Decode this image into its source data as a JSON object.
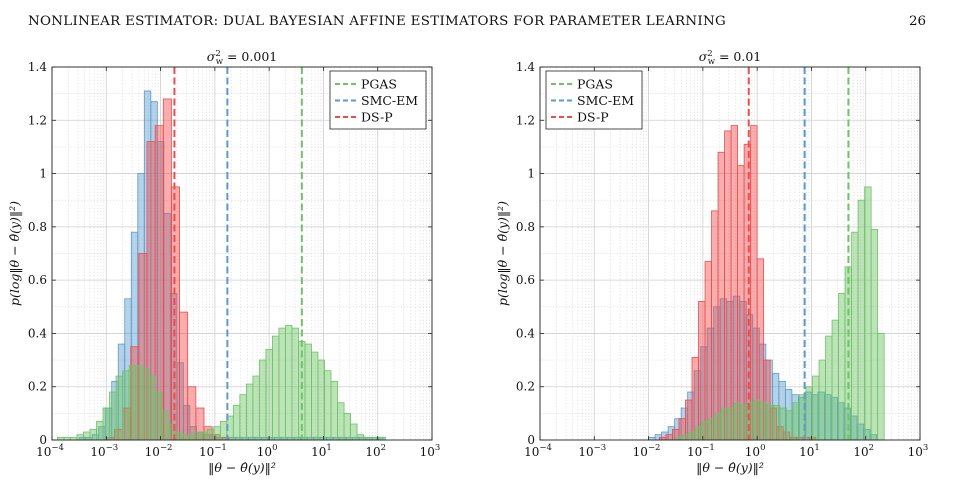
{
  "page": {
    "header_title": "NONLINEAR ESTIMATOR: DUAL BAYESIAN AFFINE ESTIMATORS FOR PARAMETER LEARNING",
    "page_number": "26"
  },
  "colors": {
    "PGAS": "#6cc464",
    "SMC-EM": "#5b9bcc",
    "DS-P": "#ef4b4b",
    "grid": "#cfcfcf"
  },
  "chart_data": [
    {
      "type": "bar",
      "title_sigma": "σ",
      "title_sup": "2",
      "title_sub": "w",
      "title_value": "= 0.001",
      "xlabel": "‖θ − θ̂(y)‖²",
      "ylabel": "p(log‖θ − θ̂(y)‖²)",
      "xscale": "log",
      "xlim": [
        0.0001,
        1000
      ],
      "ylim": [
        0,
        1.4
      ],
      "xtick_values": [
        0.0001,
        0.001,
        0.01,
        0.1,
        1,
        10,
        100,
        1000
      ],
      "xtick_exps": [
        "−4",
        "−3",
        "−2",
        "−1",
        "0",
        "1",
        "2",
        "3"
      ],
      "yticks": [
        "0",
        "0.2",
        "0.4",
        "0.6",
        "0.8",
        "1",
        "1.2",
        "1.4"
      ],
      "ytick_values": [
        0,
        0.2,
        0.4,
        0.6,
        0.8,
        1,
        1.2,
        1.4
      ],
      "grid": true,
      "legend_position": "top-right",
      "legend": [
        "PGAS",
        "SMC-EM",
        "DS-P"
      ],
      "series": [
        {
          "name": "SMC-EM",
          "bin_edges_log10": [
            -3.5,
            -3.38,
            -3.26,
            -3.14,
            -3.02,
            -2.9,
            -2.78,
            -2.66,
            -2.54,
            -2.42,
            -2.3,
            -2.18,
            -2.06,
            -1.94,
            -1.82,
            -1.7,
            -1.58,
            -1.46,
            -1.34,
            -1.22,
            -1.1,
            -0.98,
            -0.86,
            -0.74,
            -0.62,
            -0.5,
            -0.38,
            -0.26,
            -0.14,
            -0.02,
            0.1,
            0.22,
            0.34,
            0.46,
            0.58,
            0.7,
            0.82,
            0.94,
            1.06,
            1.18,
            1.3,
            1.42,
            1.54,
            1.66,
            1.78,
            1.9,
            2.02,
            2.14
          ],
          "values": [
            0.01,
            0.01,
            0.02,
            0.05,
            0.12,
            0.22,
            0.36,
            0.53,
            0.78,
            1.0,
            1.31,
            1.27,
            1.12,
            0.85,
            0.55,
            0.29,
            0.13,
            0.05,
            0.03,
            0.02,
            0.02,
            0.01,
            0.01,
            0.01,
            0.01,
            0.01,
            0.01,
            0.01,
            0.01,
            0.01,
            0.01,
            0.01,
            0.01,
            0.01,
            0.01,
            0.01,
            0.01,
            0.01,
            0.01,
            0.01,
            0.01,
            0.01,
            0.01,
            0.01,
            0.01,
            0.01,
            0.01
          ],
          "mean_line": 0.17
        },
        {
          "name": "DS-P",
          "bin_edges_log10": [
            -3.0,
            -2.85,
            -2.7,
            -2.55,
            -2.4,
            -2.25,
            -2.1,
            -1.95,
            -1.8,
            -1.65,
            -1.5,
            -1.35,
            -1.2,
            -1.05,
            -0.9,
            -0.75
          ],
          "values": [
            0.01,
            0.04,
            0.12,
            0.35,
            0.7,
            1.12,
            1.18,
            1.28,
            0.95,
            0.48,
            0.2,
            0.12,
            0.05,
            0.02,
            0.01
          ],
          "mean_line": 0.018
        },
        {
          "name": "PGAS",
          "bin_edges_log10": [
            -3.9,
            -3.78,
            -3.66,
            -3.54,
            -3.42,
            -3.3,
            -3.18,
            -3.06,
            -2.94,
            -2.82,
            -2.7,
            -2.58,
            -2.46,
            -2.34,
            -2.22,
            -2.1,
            -1.98,
            -1.86,
            -1.74,
            -1.62,
            -1.5,
            -1.38,
            -1.26,
            -1.14,
            -1.02,
            -0.9,
            -0.78,
            -0.66,
            -0.54,
            -0.42,
            -0.3,
            -0.18,
            -0.06,
            0.06,
            0.18,
            0.3,
            0.42,
            0.54,
            0.66,
            0.78,
            0.9,
            1.02,
            1.14,
            1.26,
            1.38,
            1.5,
            1.62,
            1.74,
            1.86,
            1.98,
            2.1
          ],
          "values": [
            0.01,
            0.01,
            0.01,
            0.02,
            0.03,
            0.04,
            0.07,
            0.12,
            0.18,
            0.24,
            0.26,
            0.28,
            0.28,
            0.27,
            0.24,
            0.18,
            0.11,
            0.06,
            0.03,
            0.02,
            0.02,
            0.03,
            0.03,
            0.04,
            0.05,
            0.07,
            0.09,
            0.13,
            0.17,
            0.21,
            0.24,
            0.3,
            0.34,
            0.39,
            0.42,
            0.43,
            0.42,
            0.37,
            0.36,
            0.33,
            0.3,
            0.26,
            0.22,
            0.14,
            0.1,
            0.06,
            0.02,
            0.01,
            0.01,
            0.01
          ],
          "mean_line": 4.0
        }
      ]
    },
    {
      "type": "bar",
      "title_sigma": "σ",
      "title_sup": "2",
      "title_sub": "w",
      "title_value": "= 0.01",
      "xlabel": "‖θ − θ̂(y)‖²",
      "ylabel": "p(log‖θ − θ̂(y)‖²)",
      "xscale": "log",
      "xlim": [
        0.0001,
        1000
      ],
      "ylim": [
        0,
        1.4
      ],
      "xtick_values": [
        0.0001,
        0.001,
        0.01,
        0.1,
        1,
        10,
        100,
        1000
      ],
      "xtick_exps": [
        "−4",
        "−3",
        "−2",
        "−1",
        "0",
        "1",
        "2",
        "3"
      ],
      "yticks": [
        "0",
        "0.2",
        "0.4",
        "0.6",
        "0.8",
        "1",
        "1.2",
        "1.4"
      ],
      "ytick_values": [
        0,
        0.2,
        0.4,
        0.6,
        0.8,
        1,
        1.2,
        1.4
      ],
      "grid": true,
      "legend_position": "top-left",
      "legend": [
        "PGAS",
        "SMC-EM",
        "DS-P"
      ],
      "series": [
        {
          "name": "SMC-EM",
          "bin_edges_log10": [
            -2.0,
            -1.88,
            -1.76,
            -1.64,
            -1.52,
            -1.4,
            -1.28,
            -1.16,
            -1.04,
            -0.92,
            -0.8,
            -0.68,
            -0.56,
            -0.44,
            -0.32,
            -0.2,
            -0.08,
            0.04,
            0.16,
            0.28,
            0.4,
            0.52,
            0.64,
            0.76,
            0.88,
            1.0,
            1.12,
            1.24,
            1.36,
            1.48,
            1.6,
            1.72,
            1.84,
            1.96,
            2.08,
            2.2
          ],
          "values": [
            0.01,
            0.02,
            0.03,
            0.05,
            0.08,
            0.12,
            0.18,
            0.26,
            0.35,
            0.42,
            0.5,
            0.53,
            0.52,
            0.54,
            0.52,
            0.47,
            0.42,
            0.36,
            0.3,
            0.25,
            0.22,
            0.19,
            0.17,
            0.16,
            0.18,
            0.17,
            0.18,
            0.17,
            0.16,
            0.14,
            0.12,
            0.09,
            0.06,
            0.04,
            0.02
          ],
          "mean_line": 7.5
        },
        {
          "name": "DS-P",
          "bin_edges_log10": [
            -1.8,
            -1.68,
            -1.56,
            -1.44,
            -1.32,
            -1.2,
            -1.08,
            -0.96,
            -0.84,
            -0.72,
            -0.6,
            -0.48,
            -0.36,
            -0.24,
            -0.12,
            0.0,
            0.12,
            0.24,
            0.36,
            0.48,
            0.6,
            0.72,
            0.84,
            0.96,
            1.08
          ],
          "values": [
            0.01,
            0.02,
            0.04,
            0.08,
            0.15,
            0.31,
            0.52,
            0.67,
            0.86,
            1.08,
            1.16,
            1.18,
            1.03,
            1.11,
            1.18,
            0.68,
            0.3,
            0.12,
            0.05,
            0.03,
            0.01,
            0.01,
            0.01,
            0.01
          ],
          "mean_line": 0.7
        },
        {
          "name": "PGAS",
          "bin_edges_log10": [
            -1.5,
            -1.38,
            -1.26,
            -1.14,
            -1.02,
            -0.9,
            -0.78,
            -0.66,
            -0.54,
            -0.42,
            -0.3,
            -0.18,
            -0.06,
            0.06,
            0.18,
            0.3,
            0.42,
            0.54,
            0.66,
            0.78,
            0.9,
            1.02,
            1.14,
            1.26,
            1.38,
            1.5,
            1.62,
            1.74,
            1.86,
            1.98,
            2.1,
            2.22,
            2.34
          ],
          "values": [
            0.01,
            0.02,
            0.03,
            0.05,
            0.07,
            0.08,
            0.1,
            0.12,
            0.12,
            0.14,
            0.13,
            0.14,
            0.15,
            0.14,
            0.13,
            0.13,
            0.12,
            0.11,
            0.14,
            0.17,
            0.2,
            0.24,
            0.3,
            0.39,
            0.45,
            0.55,
            0.65,
            0.78,
            0.9,
            0.95,
            0.79,
            0.4,
            0.05
          ],
          "mean_line": 48
        }
      ]
    }
  ]
}
